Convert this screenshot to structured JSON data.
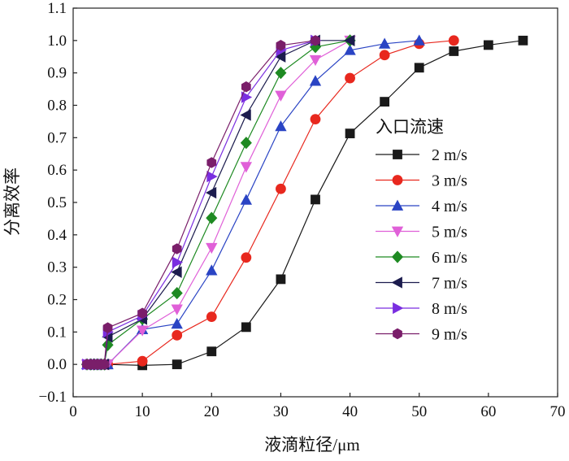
{
  "chart_data": {
    "type": "line",
    "title": "",
    "xlabel": "液滴粒径/μm",
    "ylabel": "分离效率",
    "xlim": [
      0,
      70
    ],
    "ylim": [
      -0.1,
      1.1
    ],
    "xticks": [
      0,
      10,
      20,
      30,
      40,
      50,
      60,
      70
    ],
    "xtick_labels": [
      "0",
      "10",
      "20",
      "30",
      "40",
      "50",
      "60",
      "70"
    ],
    "yticks": [
      -0.1,
      0.0,
      0.1,
      0.2,
      0.3,
      0.4,
      0.5,
      0.6,
      0.7,
      0.8,
      0.9,
      1.0,
      1.1
    ],
    "ytick_labels": [
      "−0.1",
      "0.0",
      "0.1",
      "0.2",
      "0.3",
      "0.4",
      "0.5",
      "0.6",
      "0.7",
      "0.8",
      "0.9",
      "1.0",
      "1.1"
    ],
    "grid": false,
    "legend": {
      "title": "入口流速",
      "position": "right-center"
    },
    "series": [
      {
        "name": "2 m/s",
        "color": "#1a1a1a",
        "marker": "square",
        "x": [
          2,
          2.5,
          3,
          3.5,
          4,
          4.5,
          5,
          10,
          15,
          20,
          25,
          30,
          35,
          40,
          45,
          50,
          55,
          60,
          65
        ],
        "y": [
          0,
          0,
          0,
          0,
          0,
          0,
          0,
          -0.003,
          0,
          0.04,
          0.115,
          0.263,
          0.509,
          0.713,
          0.811,
          0.916,
          0.967,
          0.986,
          1.0
        ]
      },
      {
        "name": "3 m/s",
        "color": "#e8281e",
        "marker": "circle",
        "x": [
          2,
          2.5,
          3,
          3.5,
          4,
          4.5,
          5,
          10,
          15,
          20,
          25,
          30,
          35,
          40,
          45,
          50,
          55
        ],
        "y": [
          0,
          0,
          0,
          0,
          0,
          0,
          0,
          0.01,
          0.09,
          0.147,
          0.33,
          0.542,
          0.757,
          0.884,
          0.955,
          0.99,
          1.0
        ]
      },
      {
        "name": "4 m/s",
        "color": "#2a44c4",
        "marker": "triangle-up",
        "x": [
          2,
          2.5,
          3,
          3.5,
          4,
          4.5,
          5,
          10,
          15,
          20,
          25,
          30,
          35,
          40,
          45,
          50
        ],
        "y": [
          0,
          0,
          0,
          0,
          0,
          0,
          0,
          0.108,
          0.125,
          0.29,
          0.508,
          0.735,
          0.875,
          0.97,
          0.99,
          1.0
        ]
      },
      {
        "name": "5 m/s",
        "color": "#e060d8",
        "marker": "triangle-down",
        "x": [
          2,
          2.5,
          3,
          3.5,
          4,
          4.5,
          5,
          10,
          15,
          20,
          25,
          30,
          35,
          40
        ],
        "y": [
          0,
          0,
          0,
          0,
          0,
          0,
          0,
          0.105,
          0.17,
          0.36,
          0.61,
          0.83,
          0.94,
          1.0
        ]
      },
      {
        "name": "6 m/s",
        "color": "#1e8a22",
        "marker": "diamond",
        "x": [
          2,
          2.5,
          3,
          3.5,
          4,
          4.5,
          5,
          10,
          15,
          20,
          25,
          30,
          35,
          40
        ],
        "y": [
          0,
          0,
          0,
          0,
          0,
          0,
          0.06,
          0.14,
          0.22,
          0.452,
          0.684,
          0.9,
          0.98,
          1.0
        ]
      },
      {
        "name": "7 m/s",
        "color": "#1c1c4e",
        "marker": "triangle-left",
        "x": [
          2,
          2.5,
          3,
          3.5,
          4,
          4.5,
          5,
          10,
          15,
          20,
          25,
          30,
          35,
          40
        ],
        "y": [
          0,
          0,
          0,
          0,
          0,
          0,
          0.085,
          0.14,
          0.285,
          0.53,
          0.77,
          0.95,
          1.0,
          1.0
        ]
      },
      {
        "name": "8 m/s",
        "color": "#7a2ee0",
        "marker": "triangle-right",
        "x": [
          2,
          2.5,
          3,
          3.5,
          4,
          4.5,
          5,
          10,
          15,
          20,
          25,
          30,
          35
        ],
        "y": [
          0,
          0,
          0,
          0,
          0,
          0,
          0.1,
          0.15,
          0.315,
          0.58,
          0.825,
          0.97,
          1.0
        ]
      },
      {
        "name": "9 m/s",
        "color": "#7a1e6a",
        "marker": "hexagon",
        "x": [
          2,
          2.5,
          3,
          3.5,
          4,
          4.5,
          5,
          10,
          15,
          20,
          25,
          30,
          35
        ],
        "y": [
          0,
          0,
          0,
          0,
          0,
          0,
          0.113,
          0.158,
          0.357,
          0.623,
          0.857,
          0.985,
          1.0
        ]
      }
    ]
  }
}
